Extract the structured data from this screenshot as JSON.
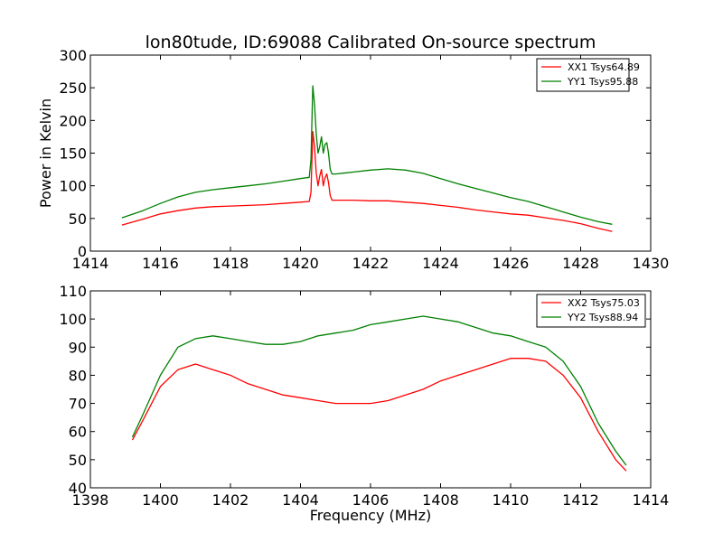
{
  "figure": {
    "title": "lon80tude, ID:69088 Calibrated On-source spectrum"
  },
  "chart_data": [
    {
      "type": "line",
      "title": "lon80tude, ID:69088 Calibrated On-source spectrum",
      "xlabel": "",
      "ylabel": "Power in Kelvin",
      "xlim": [
        1414,
        1430
      ],
      "ylim": [
        0,
        300
      ],
      "xticks": [
        1414,
        1416,
        1418,
        1420,
        1422,
        1424,
        1426,
        1428,
        1430
      ],
      "yticks": [
        0,
        50,
        100,
        150,
        200,
        250,
        300
      ],
      "legend_position": "top-right",
      "series": [
        {
          "name": "XX1 Tsys64.89",
          "color": "#ff0000",
          "x": [
            1414.9,
            1415.5,
            1416.0,
            1416.5,
            1417.0,
            1417.5,
            1418.0,
            1418.5,
            1419.0,
            1419.5,
            1420.0,
            1420.25,
            1420.3,
            1420.35,
            1420.4,
            1420.45,
            1420.5,
            1420.55,
            1420.6,
            1420.65,
            1420.7,
            1420.75,
            1420.8,
            1420.85,
            1420.9,
            1421.0,
            1421.5,
            1422.0,
            1422.5,
            1423.0,
            1423.5,
            1424.0,
            1424.5,
            1425.0,
            1425.5,
            1426.0,
            1426.5,
            1427.0,
            1427.5,
            1428.0,
            1428.5,
            1428.9
          ],
          "y": [
            40,
            49,
            57,
            62,
            66,
            68,
            69,
            70,
            71,
            73,
            75,
            76,
            90,
            183,
            160,
            120,
            100,
            115,
            125,
            100,
            112,
            118,
            105,
            85,
            78,
            78,
            78,
            77,
            77,
            75,
            73,
            70,
            67,
            63,
            60,
            57,
            55,
            51,
            47,
            42,
            35,
            30
          ]
        },
        {
          "name": "YY1 Tsys95.88",
          "color": "#008000",
          "x": [
            1414.9,
            1415.5,
            1416.0,
            1416.5,
            1417.0,
            1417.5,
            1418.0,
            1418.5,
            1419.0,
            1419.5,
            1420.0,
            1420.25,
            1420.3,
            1420.35,
            1420.4,
            1420.45,
            1420.5,
            1420.55,
            1420.6,
            1420.65,
            1420.7,
            1420.75,
            1420.8,
            1420.85,
            1420.9,
            1421.0,
            1421.5,
            1422.0,
            1422.5,
            1423.0,
            1423.5,
            1424.0,
            1424.5,
            1425.0,
            1425.5,
            1426.0,
            1426.5,
            1427.0,
            1427.5,
            1428.0,
            1428.5,
            1428.9
          ],
          "y": [
            51,
            62,
            73,
            83,
            90,
            94,
            97,
            100,
            103,
            107,
            111,
            113,
            140,
            253,
            225,
            180,
            150,
            160,
            175,
            150,
            163,
            166,
            150,
            125,
            118,
            118,
            121,
            124,
            126,
            124,
            119,
            111,
            103,
            96,
            89,
            82,
            76,
            68,
            60,
            52,
            45,
            41
          ]
        }
      ]
    },
    {
      "type": "line",
      "title": "",
      "xlabel": "Frequency (MHz)",
      "ylabel": "",
      "xlim": [
        1398,
        1414
      ],
      "ylim": [
        40,
        110
      ],
      "xticks": [
        1398,
        1400,
        1402,
        1404,
        1406,
        1408,
        1410,
        1412,
        1414
      ],
      "yticks": [
        40,
        50,
        60,
        70,
        80,
        90,
        100,
        110
      ],
      "legend_position": "top-right",
      "series": [
        {
          "name": "XX2 Tsys75.03",
          "color": "#ff0000",
          "x": [
            1399.2,
            1399.5,
            1400.0,
            1400.5,
            1401.0,
            1401.5,
            1402.0,
            1402.5,
            1403.0,
            1403.5,
            1404.0,
            1404.5,
            1405.0,
            1405.5,
            1406.0,
            1406.5,
            1407.0,
            1407.5,
            1408.0,
            1408.5,
            1409.0,
            1409.5,
            1410.0,
            1410.5,
            1411.0,
            1411.5,
            1412.0,
            1412.5,
            1413.0,
            1413.3
          ],
          "y": [
            57,
            64,
            76,
            82,
            84,
            82,
            80,
            77,
            75,
            73,
            72,
            71,
            70,
            70,
            70,
            71,
            73,
            75,
            78,
            80,
            82,
            84,
            86,
            86,
            85,
            80,
            72,
            60,
            50,
            46
          ]
        },
        {
          "name": "YY2 Tsys88.94",
          "color": "#008000",
          "x": [
            1399.2,
            1399.5,
            1400.0,
            1400.5,
            1401.0,
            1401.5,
            1402.0,
            1402.5,
            1403.0,
            1403.5,
            1404.0,
            1404.5,
            1405.0,
            1405.5,
            1406.0,
            1406.5,
            1407.0,
            1407.5,
            1408.0,
            1408.5,
            1409.0,
            1409.5,
            1410.0,
            1410.5,
            1411.0,
            1411.5,
            1412.0,
            1412.5,
            1413.0,
            1413.3
          ],
          "y": [
            58,
            66,
            80,
            90,
            93,
            94,
            93,
            92,
            91,
            91,
            92,
            94,
            95,
            96,
            98,
            99,
            100,
            101,
            100,
            99,
            97,
            95,
            94,
            92,
            90,
            85,
            76,
            63,
            53,
            48
          ]
        }
      ]
    }
  ]
}
